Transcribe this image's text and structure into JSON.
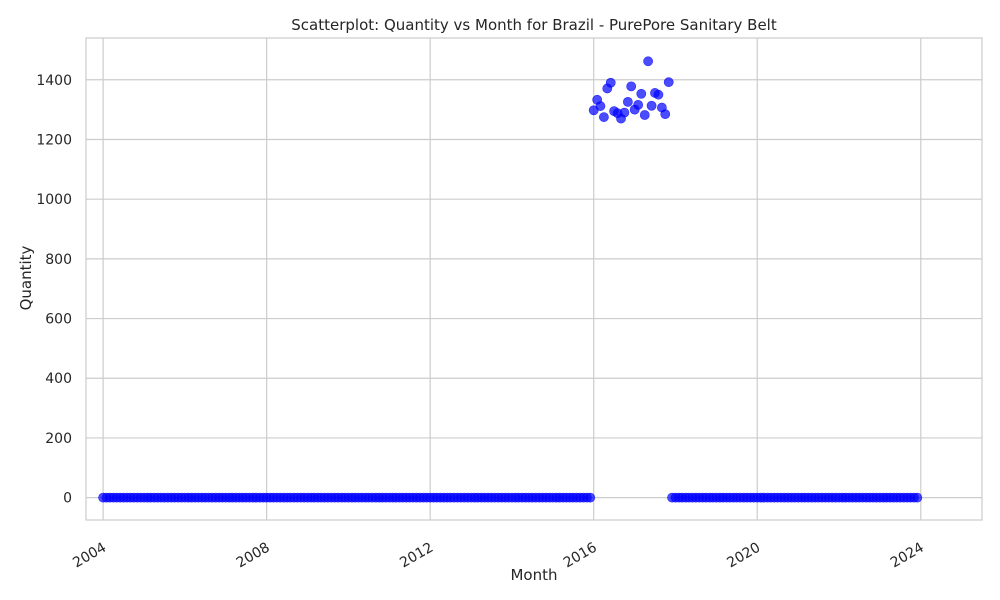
{
  "chart_data": {
    "type": "scatter",
    "title": "Scatterplot: Quantity vs Month for Brazil - PurePore Sanitary Belt",
    "xlabel": "Month",
    "ylabel": "Quantity",
    "xlim": [
      "2003-08-01",
      "2025-07-01"
    ],
    "ylim": [
      -75,
      1540
    ],
    "x_ticks": [
      "2004",
      "2008",
      "2012",
      "2016",
      "2020",
      "2024"
    ],
    "y_ticks": [
      0,
      200,
      400,
      600,
      800,
      1000,
      1200,
      1400
    ],
    "grid": true,
    "marker_color": "#0000ff",
    "grid_color": "#cccccc",
    "zero_range": [
      {
        "start": "2004-01",
        "end": "2015-12",
        "value": 0
      },
      {
        "start": "2018-01",
        "end": "2023-12",
        "value": 0
      }
    ],
    "points": [
      {
        "x": "2016-01",
        "y": 1298
      },
      {
        "x": "2016-02",
        "y": 1333
      },
      {
        "x": "2016-03",
        "y": 1312
      },
      {
        "x": "2016-04",
        "y": 1275
      },
      {
        "x": "2016-05",
        "y": 1371
      },
      {
        "x": "2016-06",
        "y": 1390
      },
      {
        "x": "2016-07",
        "y": 1295
      },
      {
        "x": "2016-08",
        "y": 1288
      },
      {
        "x": "2016-09",
        "y": 1270
      },
      {
        "x": "2016-10",
        "y": 1290
      },
      {
        "x": "2016-11",
        "y": 1326
      },
      {
        "x": "2016-12",
        "y": 1378
      },
      {
        "x": "2017-01",
        "y": 1300
      },
      {
        "x": "2017-02",
        "y": 1316
      },
      {
        "x": "2017-03",
        "y": 1353
      },
      {
        "x": "2017-04",
        "y": 1282
      },
      {
        "x": "2017-05",
        "y": 1462
      },
      {
        "x": "2017-06",
        "y": 1313
      },
      {
        "x": "2017-07",
        "y": 1356
      },
      {
        "x": "2017-08",
        "y": 1350
      },
      {
        "x": "2017-09",
        "y": 1307
      },
      {
        "x": "2017-10",
        "y": 1285
      },
      {
        "x": "2017-11",
        "y": 1392
      },
      {
        "x": "2017-12",
        "y": 0
      }
    ]
  }
}
